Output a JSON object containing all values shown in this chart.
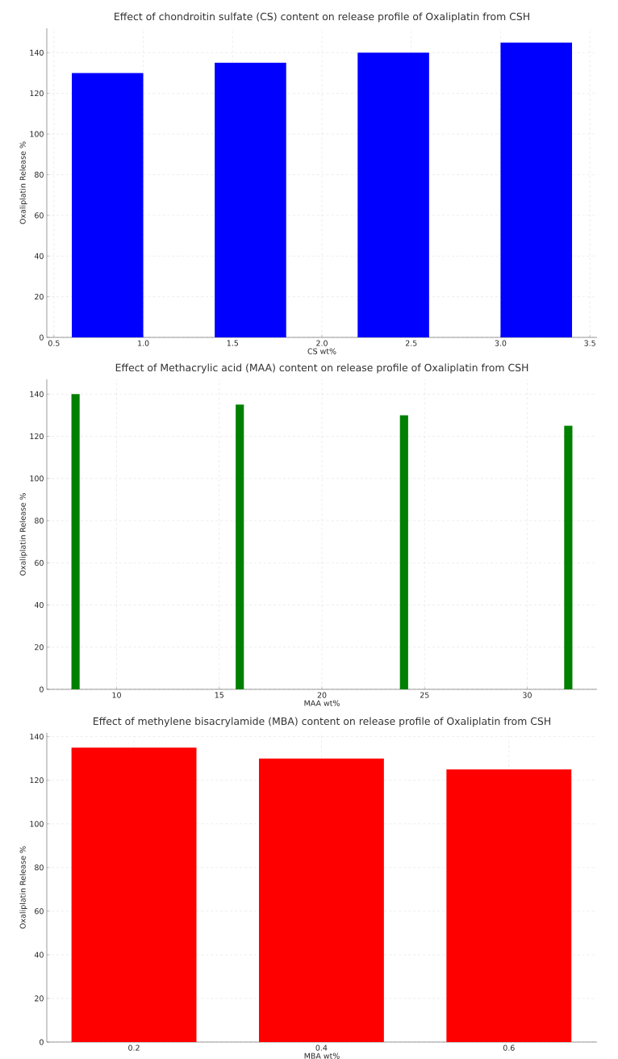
{
  "chart_data": [
    {
      "type": "bar",
      "title": "Effect of chondroitin sulfate (CS) content on release profile of Oxaliplatin from CSH",
      "xlabel": "CS wt%",
      "ylabel": "Oxaliplatin Release %",
      "x": [
        0.8,
        1.6,
        2.4,
        3.2
      ],
      "values": [
        130,
        135,
        140,
        145
      ],
      "color": "#0000ff",
      "xlim": [
        0.46,
        3.54
      ],
      "ylim": [
        0,
        152
      ],
      "xticks": [
        {
          "value": 0.5,
          "label": "0.5"
        },
        {
          "value": 1,
          "label": "1.0"
        },
        {
          "value": 1.5,
          "label": "1.5"
        },
        {
          "value": 2,
          "label": "2.0"
        },
        {
          "value": 2.5,
          "label": "2.5"
        },
        {
          "value": 3,
          "label": "3.0"
        },
        {
          "value": 3.5,
          "label": "3.5"
        }
      ],
      "yticks": [
        0,
        20,
        40,
        60,
        80,
        100,
        120,
        140
      ],
      "grid": true
    },
    {
      "type": "bar",
      "title": "Effect of Methacrylic acid (MAA) content on release profile of Oxaliplatin from CSH",
      "xlabel": "MAA wt%",
      "ylabel": "Oxaliplatin Release %",
      "x": [
        8,
        16,
        24,
        32
      ],
      "values": [
        140,
        135,
        130,
        125
      ],
      "color": "#008000",
      "xlim": [
        6.6,
        33.4
      ],
      "ylim": [
        0,
        147
      ],
      "xticks": [
        10,
        15,
        20,
        25,
        30
      ],
      "yticks": [
        0,
        20,
        40,
        60,
        80,
        100,
        120,
        140
      ],
      "grid": true
    },
    {
      "type": "bar",
      "title": "Effect of methylene bisacrylamide (MBA) content on release profile of Oxaliplatin from CSH",
      "xlabel": "MBA wt%",
      "ylabel": "Oxaliplatin Release %",
      "x": [
        0.2,
        0.4,
        0.6
      ],
      "values": [
        135,
        130,
        125
      ],
      "color": "#ff0000",
      "xlim": [
        0.107,
        0.694
      ],
      "ylim": [
        0,
        141.7
      ],
      "xticks": [
        0.2,
        0.4,
        0.6
      ],
      "yticks": [
        0,
        20,
        40,
        60,
        80,
        100,
        120,
        140
      ],
      "grid": true
    }
  ]
}
